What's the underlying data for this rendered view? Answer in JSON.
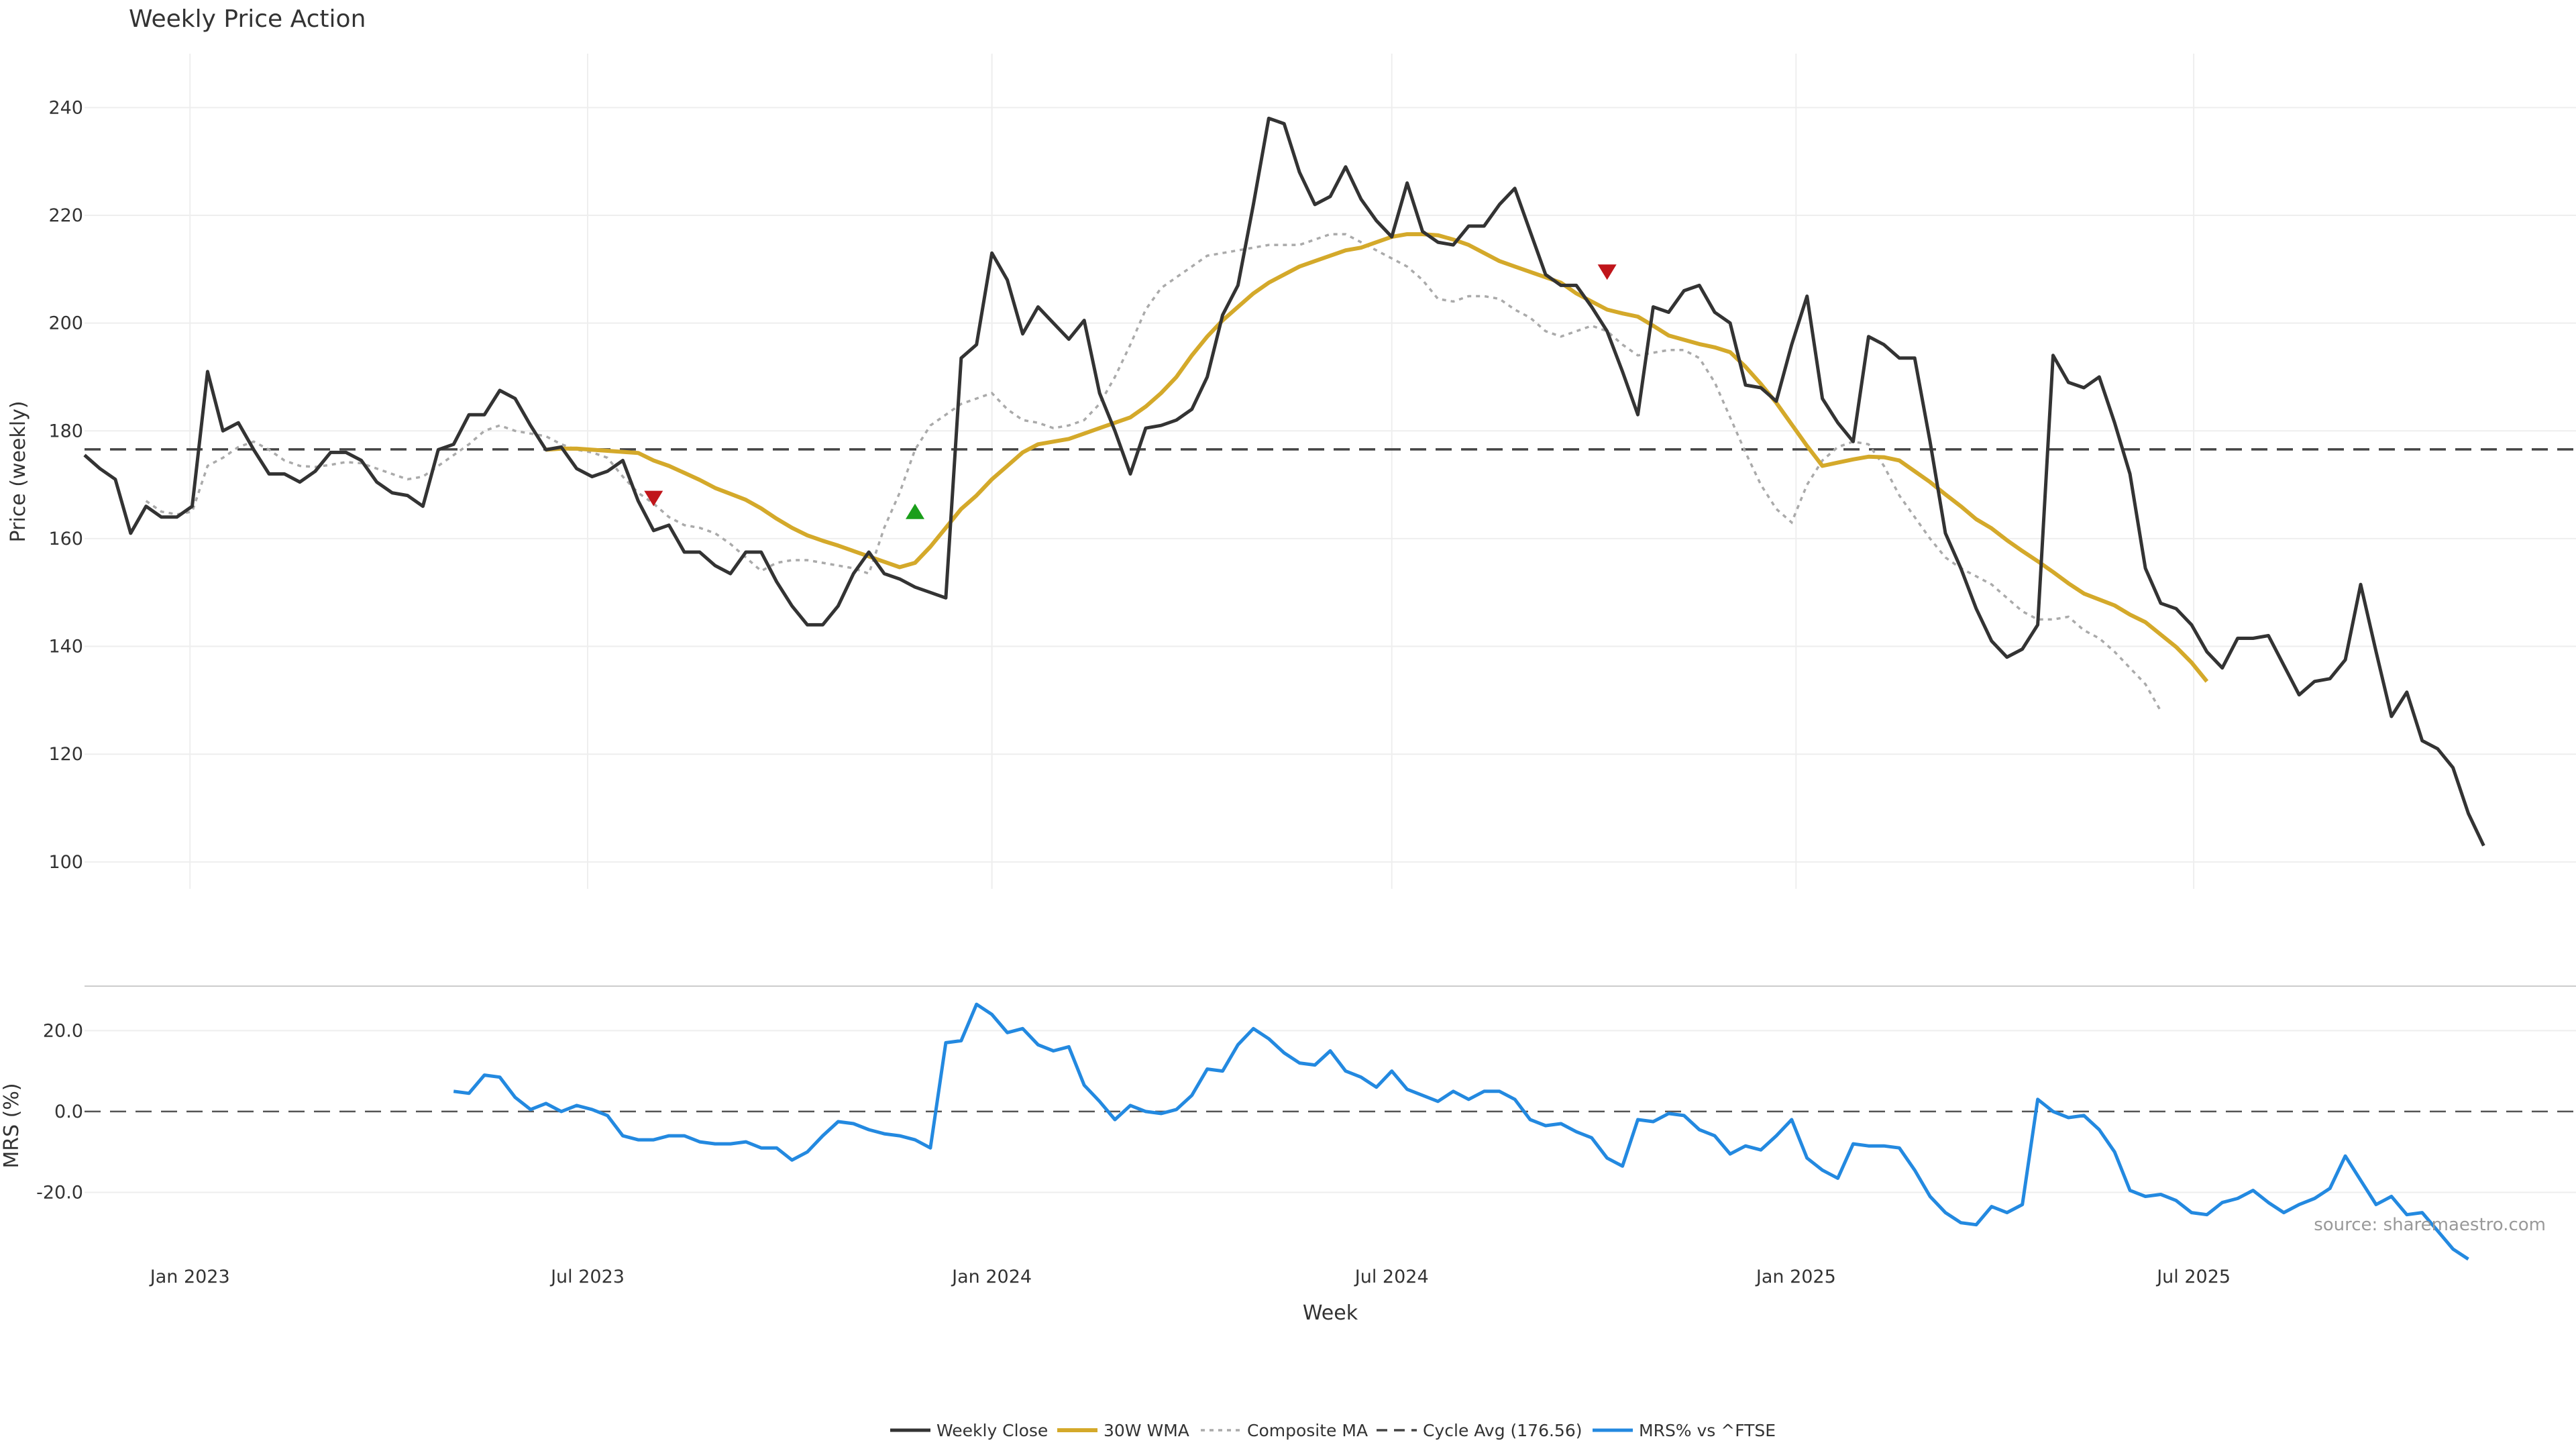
{
  "chart_data": {
    "type": "line",
    "title": "Weekly Price Action",
    "xlabel": "Week",
    "x_ticks": [
      "Jan 2023",
      "Jul 2023",
      "Jan 2024",
      "Jul 2024",
      "Jan 2025",
      "Jul 2025"
    ],
    "x_range": [
      "2022-11-14",
      "2025-12-22"
    ],
    "x_tick_dates": [
      "2023-01-01",
      "2023-07-01",
      "2024-01-01",
      "2024-07-01",
      "2025-01-01",
      "2025-07-01"
    ],
    "price_panel": {
      "ylabel": "Price (weekly)",
      "ylim": [
        95,
        250
      ],
      "y_ticks": [
        100,
        120,
        140,
        160,
        180,
        200,
        220,
        240
      ],
      "grid": true
    },
    "mrs_panel": {
      "ylabel": "MRS (%)",
      "ylim": [
        -37,
        31
      ],
      "y_ticks": [
        20,
        0,
        -20
      ],
      "y_tick_labels": [
        "20.0",
        "0.0",
        "-20.0"
      ],
      "grid": true
    },
    "cycle_avg": 176.56,
    "legend": {
      "placement": "bottom-center",
      "entries": [
        "Weekly Close",
        "30W WMA",
        "Composite MA",
        "Cycle Avg (176.56)",
        "MRS% vs ^FTSE"
      ]
    },
    "source": "source: sharemaestro.com",
    "colors": {
      "close": "#333333",
      "wma": "#d4a92a",
      "composite": "#aaaaaa",
      "cycle": "#444444",
      "mrs": "#2389e0",
      "signal_up": "#1a9e1a",
      "signal_down": "#c0151a",
      "grid": "#eeeeee"
    },
    "series": [
      {
        "name": "Weekly Close",
        "key": "close",
        "values": [
          175.5,
          173,
          171,
          161,
          166,
          164,
          164,
          166,
          191,
          180,
          181.5,
          176.5,
          172,
          172,
          170.5,
          172.5,
          176,
          176,
          174.5,
          170.5,
          168.5,
          168,
          166,
          176.5,
          177.5,
          183,
          183,
          187.5,
          186,
          181,
          176.5,
          177,
          173,
          171.5,
          172.5,
          174.5,
          167,
          161.5,
          162.5,
          157.5,
          157.5,
          155,
          153.5,
          157.5,
          157.5,
          152,
          147.5,
          144,
          144,
          147.5,
          153.5,
          157.5,
          153.5,
          152.5,
          151,
          150,
          149,
          193.5,
          196,
          213,
          208,
          198,
          203,
          200,
          197,
          200.5,
          187,
          180,
          172,
          180.5,
          181,
          182,
          184,
          190,
          201.5,
          207,
          222,
          238,
          237,
          228,
          222,
          223.5,
          229,
          223,
          219,
          216,
          226,
          217,
          215,
          214.5,
          218,
          218,
          222,
          225,
          217,
          209,
          207,
          207,
          203,
          198.5,
          191,
          183,
          203,
          202,
          206,
          207,
          202,
          200,
          188.5,
          188,
          185.5,
          196,
          205,
          186,
          181.5,
          178,
          197.5,
          196,
          193.5,
          193.5,
          178,
          161,
          154.5,
          147,
          141,
          138,
          139.5,
          144,
          194,
          189,
          188,
          190,
          181.5,
          172,
          154.5,
          148,
          147,
          144,
          139,
          136,
          141.5,
          141.5,
          142,
          136.5,
          131,
          133.5,
          134,
          137.5,
          151.5,
          139,
          127,
          131.5,
          122.5,
          121,
          117.5,
          109,
          103
        ]
      },
      {
        "name": "30W WMA",
        "key": "wma",
        "start": 30,
        "values": [
          176.5,
          176.7,
          176.7,
          176.5,
          176.3,
          176.1,
          175.9,
          174.5,
          173.5,
          172.2,
          170.9,
          169.4,
          168.3,
          167.2,
          165.6,
          163.7,
          162,
          160.6,
          159.6,
          158.7,
          157.7,
          156.7,
          155.7,
          154.7,
          155.5,
          158.5,
          162,
          165.5,
          168,
          171,
          173.5,
          176,
          177.5,
          178,
          178.5,
          179.5,
          180.5,
          181.5,
          182.5,
          184.5,
          187,
          190,
          194,
          197.5,
          200.5,
          203,
          205.5,
          207.5,
          209,
          210.5,
          211.5,
          212.5,
          213.5,
          214,
          215,
          216,
          216.5,
          216.5,
          216.3,
          215.5,
          214.5,
          213,
          211.5,
          210.5,
          209.5,
          208.5,
          207.5,
          205.5,
          204,
          202.5,
          201.8,
          201.2,
          199.5,
          197.7,
          196.9,
          196.1,
          195.5,
          194.6,
          191.9,
          188.7,
          185.2,
          181.2,
          177.2,
          173.5,
          174.1,
          174.7,
          175.2,
          175.1,
          174.5,
          172.5,
          170.5,
          168.2,
          166,
          163.6,
          161.9,
          159.7,
          157.7,
          155.8,
          153.8,
          151.7,
          149.8,
          148.7,
          147.6,
          145.9,
          144.5,
          142.2,
          139.9,
          137,
          133.5
        ]
      },
      {
        "name": "Composite MA",
        "key": "composite",
        "start": 4,
        "values": [
          167,
          165,
          164.5,
          165,
          173.5,
          175,
          177,
          178,
          176.5,
          174.5,
          173.5,
          173.3,
          173.7,
          174.2,
          174,
          173,
          172,
          171,
          171.5,
          173.5,
          175.5,
          177.5,
          180,
          181,
          180,
          179.5,
          179,
          177.5,
          176.5,
          176,
          175,
          171.5,
          168.5,
          166.5,
          164,
          162.5,
          162,
          161,
          159,
          156.5,
          154,
          155.5,
          156,
          156,
          155.5,
          155,
          154.5,
          153.5,
          162,
          168.5,
          176.5,
          181,
          183,
          185,
          186,
          187,
          184,
          182,
          181.5,
          180.5,
          181,
          182,
          185,
          190,
          196,
          202.5,
          206.5,
          208.5,
          210.5,
          212.5,
          213,
          213.5,
          214,
          214.5,
          214.5,
          214.5,
          215.5,
          216.5,
          216.5,
          215,
          213.5,
          212,
          210.5,
          208,
          204.5,
          204,
          205,
          205,
          204.5,
          202.5,
          201,
          198.5,
          197.5,
          198.5,
          199.5,
          198.5,
          196,
          194,
          194.5,
          195,
          195,
          193.5,
          189,
          182.5,
          176,
          170,
          165.5,
          163,
          170,
          174.5,
          177,
          178,
          177.5,
          173.5,
          168,
          164,
          160,
          156.5,
          154.5,
          153,
          151.5,
          149,
          146.5,
          145,
          145,
          145.5,
          143,
          141.5,
          139,
          136,
          133,
          128
        ]
      },
      {
        "name": "MRS% vs ^FTSE",
        "key": "mrs",
        "start": 24,
        "values": [
          5,
          4.5,
          9,
          8.5,
          3.5,
          0.5,
          2,
          0,
          1.5,
          0.5,
          -1,
          -6,
          -7,
          -7,
          -6,
          -6,
          -7.5,
          -8,
          -8,
          -7.5,
          -9,
          -9,
          -12,
          -10,
          -6,
          -2.5,
          -3,
          -4.5,
          -5.5,
          -6,
          -7,
          -9,
          17,
          17.5,
          26.5,
          24,
          19.5,
          20.5,
          16.5,
          15,
          16,
          6.5,
          2.5,
          -2,
          1.5,
          0,
          -0.5,
          0.5,
          4,
          10.5,
          10,
          16.5,
          20.5,
          18,
          14.5,
          12,
          11.5,
          15,
          10,
          8.5,
          6,
          10,
          5.5,
          4,
          2.5,
          5,
          3,
          5,
          5,
          3,
          -2,
          -3.5,
          -3,
          -5,
          -6.5,
          -11.5,
          -13.5,
          -2,
          -2.5,
          -0.5,
          -1,
          -4.5,
          -6,
          -10.5,
          -8.5,
          -9.5,
          -6,
          -2,
          -11.5,
          -14.5,
          -16.5,
          -8,
          -8.5,
          -8.5,
          -9,
          -14.5,
          -21,
          -25,
          -27.5,
          -28,
          -23.5,
          -25,
          -23,
          3,
          0,
          -1.5,
          -1,
          -4.5,
          -10,
          -19.5,
          -21,
          -20.5,
          -22,
          -25,
          -25.5,
          -22.5,
          -21.5,
          -19.5,
          -22.5,
          -25,
          -23,
          -21.5,
          -19,
          -11,
          -17,
          -23,
          -21,
          -25.5,
          -25,
          -29.5,
          -34,
          -36.5
        ]
      }
    ],
    "signals": [
      {
        "type": "sell",
        "x_index": 37,
        "y": 167.5
      },
      {
        "type": "buy",
        "x_index": 54,
        "y": 165
      },
      {
        "type": "sell",
        "x_index": 99,
        "y": 209.5
      }
    ]
  }
}
